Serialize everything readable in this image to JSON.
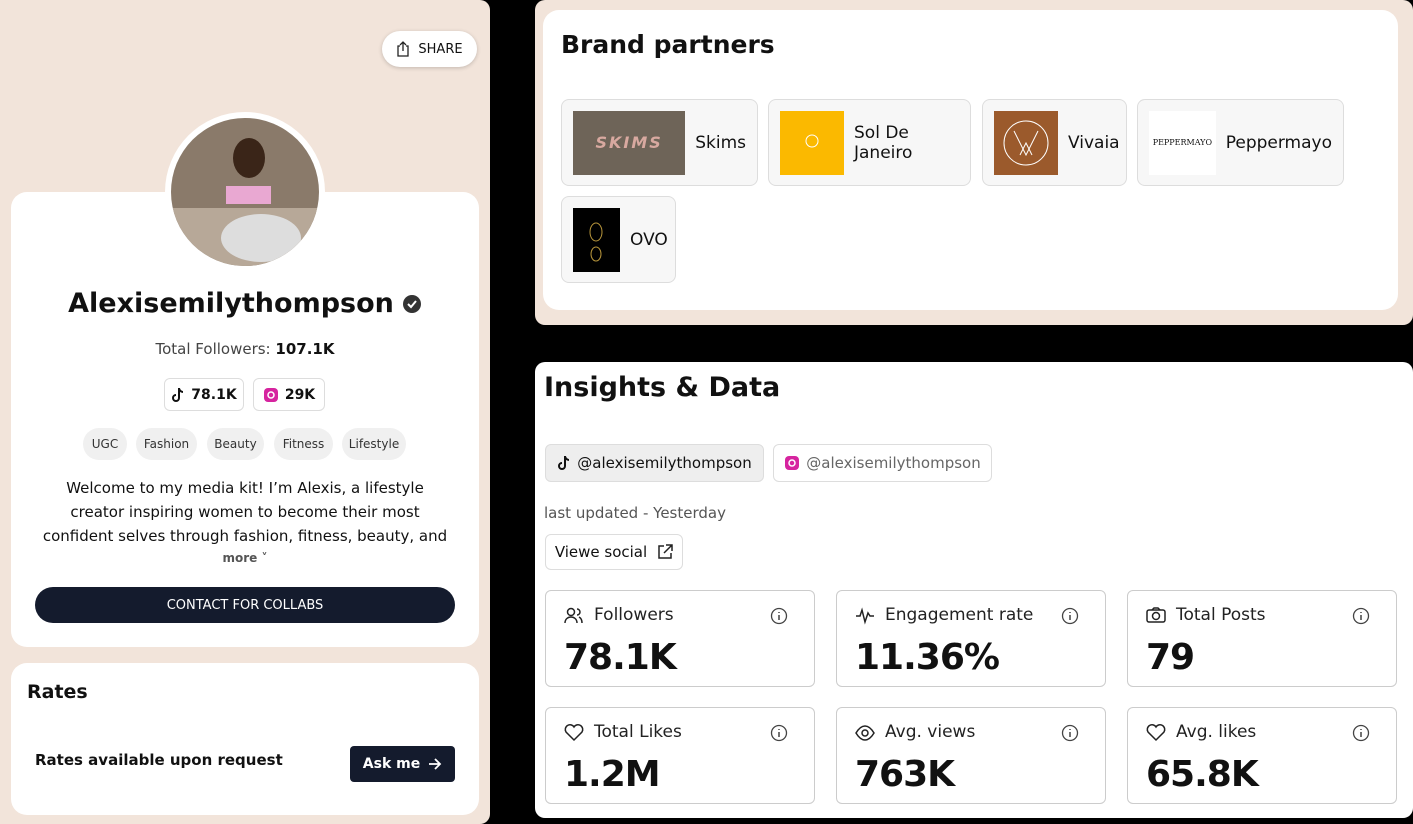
{
  "profile": {
    "share": "SHARE",
    "name": "Alexisemilythompson",
    "followers_label": "Total Followers:",
    "followers_total": "107.1K",
    "platforms": [
      {
        "count": "78.1K"
      },
      {
        "count": "29K"
      }
    ],
    "tags": [
      "UGC",
      "Fashion",
      "Beauty",
      "Fitness",
      "Lifestyle"
    ],
    "bio": "Welcome to my media kit! I’m Alexis, a lifestyle creator inspiring women to become their most confident selves through fashion, fitness, beauty, and wellness content…",
    "more": "more",
    "cta": "CONTACT FOR COLLABS"
  },
  "rates": {
    "title": "Rates",
    "text": "Rates available upon request",
    "button": "Ask me"
  },
  "brands": {
    "title": "Brand partners",
    "items": [
      {
        "name": "Skims",
        "logo": "SKIMS"
      },
      {
        "name": "Sol De Janeiro"
      },
      {
        "name": "Vivaia"
      },
      {
        "name": "Peppermayo",
        "logo": "PEPPERMAYO"
      },
      {
        "name": "OVO"
      }
    ]
  },
  "insights": {
    "title": "Insights & Data",
    "accounts": [
      "@alexisemilythompson",
      "@alexisemilythompson"
    ],
    "updated": "last updated - Yesterday",
    "view": "Viewe social",
    "metrics": [
      {
        "label": "Followers",
        "value": "78.1K"
      },
      {
        "label": "Engagement rate",
        "value": "11.36%"
      },
      {
        "label": "Total Posts",
        "value": "79"
      },
      {
        "label": "Total Likes",
        "value": "1.2M"
      },
      {
        "label": "Avg. views",
        "value": "763K"
      },
      {
        "label": "Avg. likes",
        "value": "65.8K"
      }
    ]
  }
}
